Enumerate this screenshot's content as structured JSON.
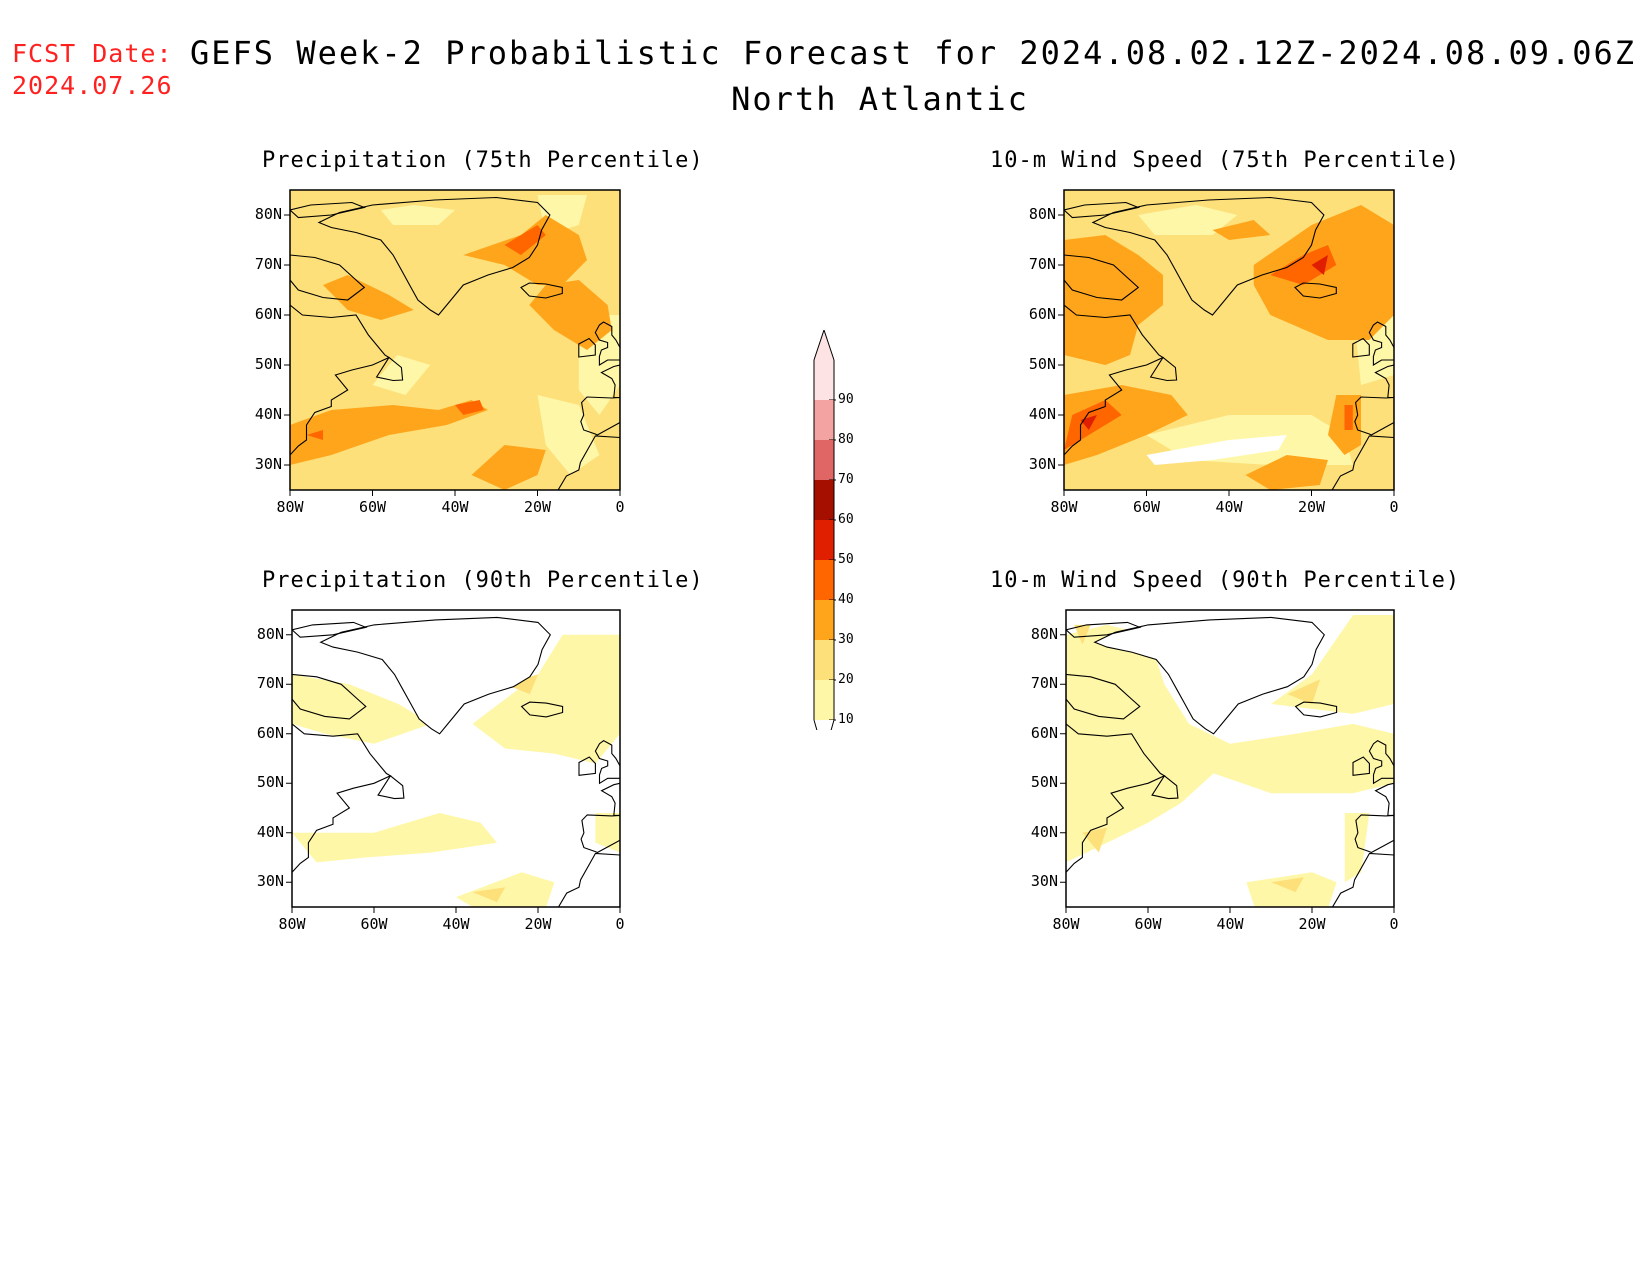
{
  "header": {
    "fcst_label": "FCST Date:",
    "fcst_date": "2024.07.26",
    "title_line1": "GEFS Week-2 Probabilistic Forecast for 2024.08.02.12Z-2024.08.09.06Z",
    "title_line2": "North Atlantic"
  },
  "axes": {
    "lat_labels": [
      "80N",
      "70N",
      "60N",
      "50N",
      "40N",
      "30N"
    ],
    "lon_labels": [
      "80W",
      "60W",
      "40W",
      "20W",
      "0"
    ]
  },
  "panels": [
    {
      "title": "Precipitation (75th Percentile)"
    },
    {
      "title": "10-m Wind Speed (75th Percentile)"
    },
    {
      "title": "Precipitation (90th Percentile)"
    },
    {
      "title": "10-m Wind Speed (90th Percentile)"
    }
  ],
  "colorbar": {
    "levels": [
      "10",
      "20",
      "30",
      "40",
      "50",
      "60",
      "70",
      "80",
      "90"
    ],
    "colors": [
      "#fff7a8",
      "#fde07a",
      "#ffa51c",
      "#ff6600",
      "#e01e00",
      "#a50f00",
      "#e06666",
      "#f4a3a3",
      "#fde3e3"
    ]
  },
  "colors": {
    "fcst_text": "#ff2020",
    "coast": "#000000"
  }
}
